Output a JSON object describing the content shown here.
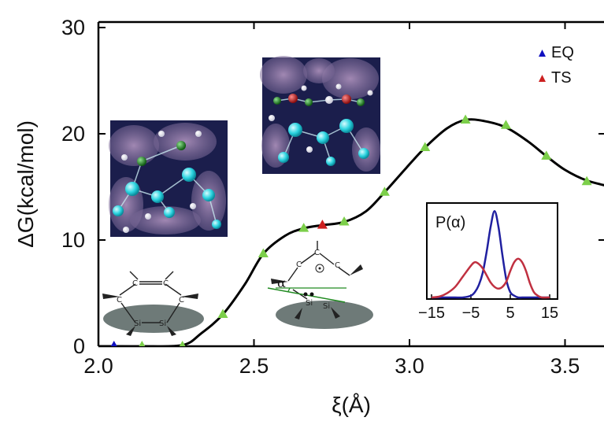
{
  "chart_data": {
    "type": "line",
    "xlabel": "ξ(Å)",
    "ylabel": "ΔG(kcal/mol)",
    "xlim": [
      2.0,
      3.65
    ],
    "ylim": [
      0,
      30
    ],
    "x_ticks": [
      "2.0",
      "2.5",
      "3.0",
      "3.5"
    ],
    "y_ticks": [
      "0",
      "10",
      "20",
      "30"
    ],
    "curve": {
      "x": [
        2.0,
        2.05,
        2.14,
        2.27,
        2.33,
        2.4,
        2.47,
        2.53,
        2.6,
        2.66,
        2.72,
        2.79,
        2.86,
        2.92,
        2.99,
        3.05,
        3.12,
        3.18,
        3.24,
        3.31,
        3.38,
        3.44,
        3.5,
        3.57,
        3.65
      ],
      "y": [
        0,
        0,
        0,
        0.1,
        1.2,
        3.0,
        5.8,
        8.7,
        10.4,
        11.1,
        11.4,
        11.7,
        12.7,
        14.5,
        16.8,
        18.7,
        20.5,
        21.3,
        21.2,
        20.6,
        19.3,
        17.9,
        16.6,
        15.6,
        15.0
      ]
    },
    "series": [
      {
        "name": "EQ",
        "color": "#1010c0",
        "x": [
          2.05
        ],
        "y": [
          0
        ]
      },
      {
        "name": "TS",
        "color": "#cc2020",
        "x": [
          2.72
        ],
        "y": [
          11.4
        ]
      }
    ],
    "points": {
      "color": "#7ccf4a",
      "x": [
        2.14,
        2.27,
        2.4,
        2.53,
        2.66,
        2.79,
        2.92,
        3.05,
        3.18,
        3.31,
        3.44,
        3.57
      ],
      "y": [
        0,
        0,
        3.0,
        8.7,
        11.1,
        11.7,
        14.5,
        18.7,
        21.3,
        20.8,
        17.9,
        15.5
      ]
    },
    "legend": {
      "placement": "top-right"
    },
    "grid": false
  },
  "inset": {
    "title": "P(α)",
    "xlim": [
      -15,
      15
    ],
    "x_ticks": [
      "−15",
      "−5",
      "5",
      "15"
    ],
    "x_tick_values": [
      -15,
      -5,
      5,
      15
    ],
    "x": [
      -15,
      -13,
      -11,
      -9,
      -7,
      -5,
      -4,
      -3,
      -2,
      -1,
      0,
      1,
      2,
      3,
      4,
      5,
      6,
      7,
      8,
      9,
      10,
      11,
      12,
      13,
      15
    ],
    "blue": [
      0,
      0,
      0,
      0,
      0,
      0.02,
      0.06,
      0.14,
      0.28,
      0.52,
      0.8,
      0.98,
      0.8,
      0.48,
      0.2,
      0.06,
      0.02,
      0,
      0,
      0,
      0,
      0,
      0,
      0,
      0
    ],
    "red": [
      0,
      0.01,
      0.05,
      0.12,
      0.24,
      0.36,
      0.4,
      0.38,
      0.33,
      0.25,
      0.17,
      0.12,
      0.1,
      0.12,
      0.18,
      0.3,
      0.4,
      0.44,
      0.4,
      0.3,
      0.16,
      0.06,
      0.02,
      0,
      0
    ],
    "blue_color": "#2020a0",
    "red_color": "#c03040"
  },
  "structures": {
    "left": {
      "c_atom": "C",
      "si_atom": "Si"
    },
    "right": {
      "c_atom": "C",
      "si_atom": "Si",
      "angle_label": "α"
    }
  },
  "colors": {
    "curve": "#000000",
    "render_background": "#1b1e4c",
    "render_cloud": "#9a7aa8",
    "si_atom": "#2cd4e0",
    "c_atom": "#1e7a1e",
    "o_atom": "#c01818",
    "h_atom": "#f2f2f2",
    "surface": "#6e7a78"
  }
}
